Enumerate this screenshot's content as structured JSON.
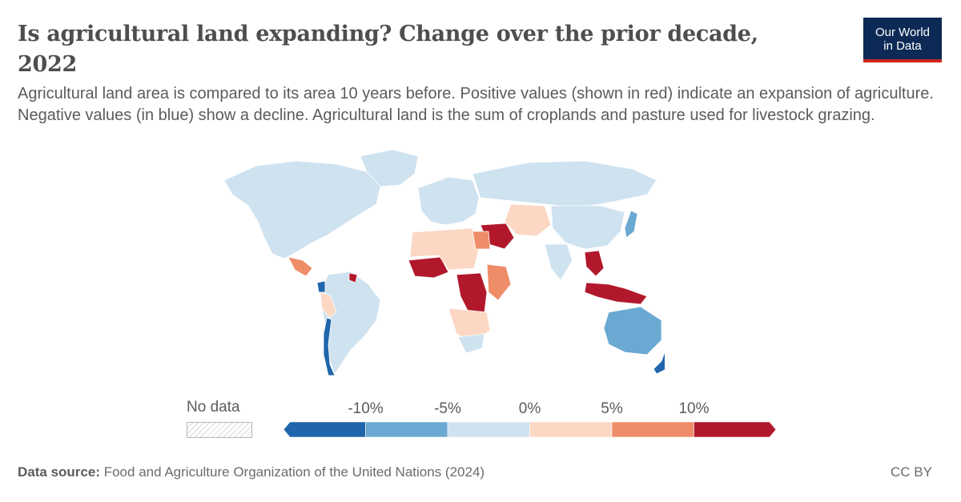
{
  "header": {
    "title": "Is agricultural land expanding? Change over the prior decade, 2022",
    "subtitle": "Agricultural land area is compared to its area 10 years before. Positive values (shown in red) indicate an expansion of agriculture. Negative values (in blue) show a decline. Agricultural land is the sum of croplands and pasture used for livestock grazing."
  },
  "logo": {
    "line1": "Our World",
    "line2": "in Data",
    "bg": "#0d2a56",
    "accent": "#ce261e"
  },
  "legend": {
    "no_data_label": "No data",
    "ticks": [
      "-10%",
      "-5%",
      "0%",
      "5%",
      "10%"
    ],
    "bins": [
      {
        "from": null,
        "to": -10,
        "color": "#2066ac"
      },
      {
        "from": -10,
        "to": -5,
        "color": "#6aa9d2"
      },
      {
        "from": -5,
        "to": 0,
        "color": "#cfe2f0"
      },
      {
        "from": 0,
        "to": 5,
        "color": "#fbd7c4"
      },
      {
        "from": 5,
        "to": 10,
        "color": "#ee8d68"
      },
      {
        "from": 10,
        "to": null,
        "color": "#b2182b"
      }
    ]
  },
  "map_data": {
    "year": 2022,
    "regions": [
      {
        "name": "North America",
        "color": "#cfe2f0"
      },
      {
        "name": "Greenland",
        "color": "#cfe2f0"
      },
      {
        "name": "Central America",
        "color": "#ee8d68"
      },
      {
        "name": "South America",
        "color": "#cfe2f0"
      },
      {
        "name": "Chile",
        "color": "#2066ac"
      },
      {
        "name": "Ecuador",
        "color": "#2066ac"
      },
      {
        "name": "Peru",
        "color": "#fbd7c4"
      },
      {
        "name": "Guyana",
        "color": "#b2182b"
      },
      {
        "name": "Europe",
        "color": "#cfe2f0"
      },
      {
        "name": "Russia",
        "color": "#cfe2f0"
      },
      {
        "name": "Middle East",
        "color": "#b2182b"
      },
      {
        "name": "Central Asia",
        "color": "#fbd7c4"
      },
      {
        "name": "West Africa",
        "color": "#b2182b"
      },
      {
        "name": "Sahara",
        "color": "#fbd7c4"
      },
      {
        "name": "Egypt",
        "color": "#ee8d68"
      },
      {
        "name": "Central Africa",
        "color": "#b2182b"
      },
      {
        "name": "East Africa",
        "color": "#ee8d68"
      },
      {
        "name": "Southern Africa",
        "color": "#fbd7c4"
      },
      {
        "name": "South Africa",
        "color": "#cfe2f0"
      },
      {
        "name": "India",
        "color": "#cfe2f0"
      },
      {
        "name": "China",
        "color": "#cfe2f0"
      },
      {
        "name": "Southeast Asia",
        "color": "#b2182b"
      },
      {
        "name": "Indonesia",
        "color": "#b2182b"
      },
      {
        "name": "Japan",
        "color": "#6aa9d2"
      },
      {
        "name": "Australia",
        "color": "#6aa9d2"
      },
      {
        "name": "New Zealand",
        "color": "#2066ac"
      }
    ]
  },
  "footer": {
    "source_label": "Data source:",
    "source_text": "Food and Agriculture Organization of the United Nations (2024)",
    "license": "CC BY"
  }
}
